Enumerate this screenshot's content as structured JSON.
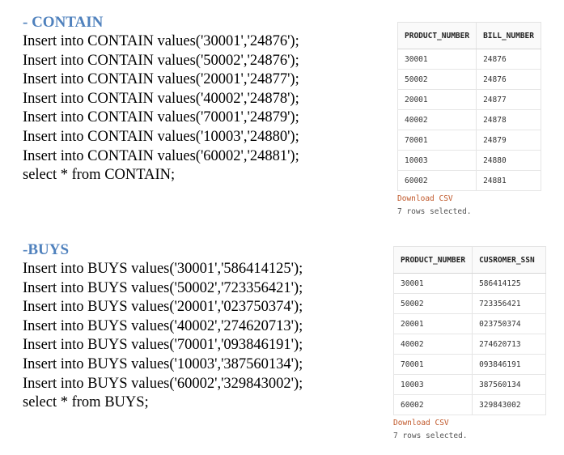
{
  "contain": {
    "title": "- CONTAIN",
    "lines": [
      "Insert into CONTAIN values('30001','24876');",
      "Insert into CONTAIN values('50002','24876');",
      "Insert into CONTAIN values('20001','24877');",
      "Insert into CONTAIN values('40002','24878');",
      "Insert into CONTAIN values('70001','24879');",
      "Insert into CONTAIN values('10003','24880');",
      "Insert into CONTAIN values('60002','24881');",
      "select * from CONTAIN;"
    ],
    "result": {
      "columns": [
        "PRODUCT_NUMBER",
        "BILL_NUMBER"
      ],
      "rows": [
        [
          "30001",
          "24876"
        ],
        [
          "50002",
          "24876"
        ],
        [
          "20001",
          "24877"
        ],
        [
          "40002",
          "24878"
        ],
        [
          "70001",
          "24879"
        ],
        [
          "10003",
          "24880"
        ],
        [
          "60002",
          "24881"
        ]
      ],
      "download_label": "Download CSV",
      "rows_selected": "7 rows selected."
    }
  },
  "buys": {
    "title": "-BUYS",
    "lines": [
      "Insert into BUYS values('30001','586414125');",
      "Insert into BUYS values('50002','723356421');",
      "Insert into BUYS values('20001','023750374');",
      "Insert into BUYS values('40002','274620713');",
      "Insert into BUYS values('70001','093846191');",
      "Insert into BUYS values('10003','387560134');",
      "Insert into BUYS values('60002','329843002');",
      "select * from BUYS;"
    ],
    "result": {
      "columns": [
        "PRODUCT_NUMBER",
        "CUSROMER_SSN"
      ],
      "rows": [
        [
          "30001",
          "586414125"
        ],
        [
          "50002",
          "723356421"
        ],
        [
          "20001",
          "023750374"
        ],
        [
          "40002",
          "274620713"
        ],
        [
          "70001",
          "093846191"
        ],
        [
          "10003",
          "387560134"
        ],
        [
          "60002",
          "329843002"
        ]
      ],
      "download_label": "Download CSV",
      "rows_selected": "7 rows selected."
    }
  }
}
